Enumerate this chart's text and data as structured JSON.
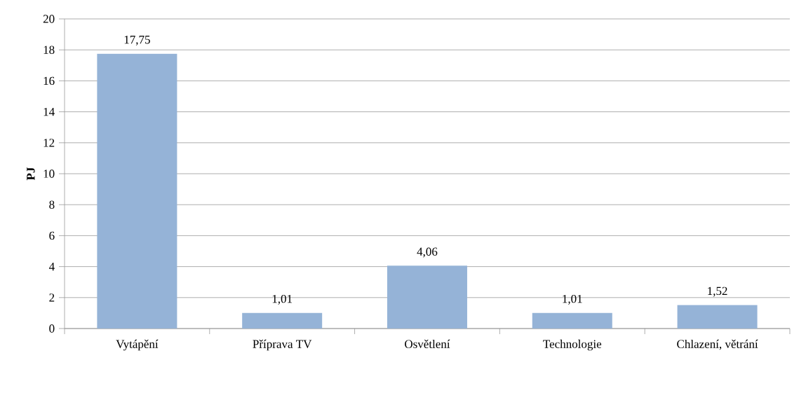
{
  "chart_data": {
    "type": "bar",
    "ylabel": "PJ",
    "categories": [
      "Vytápění",
      "Příprava TV",
      "Osvětlení",
      "Technologie",
      "Chlazení, větrání"
    ],
    "values": [
      17.75,
      1.01,
      4.06,
      1.01,
      1.52
    ],
    "value_labels": [
      "17,75",
      "1,01",
      "4,06",
      "1,01",
      "1,52"
    ],
    "color": "#95b3d7",
    "ylim": [
      0,
      20
    ],
    "yticks": [
      0,
      2,
      4,
      6,
      8,
      10,
      12,
      14,
      16,
      18,
      20
    ],
    "grid": "y"
  }
}
